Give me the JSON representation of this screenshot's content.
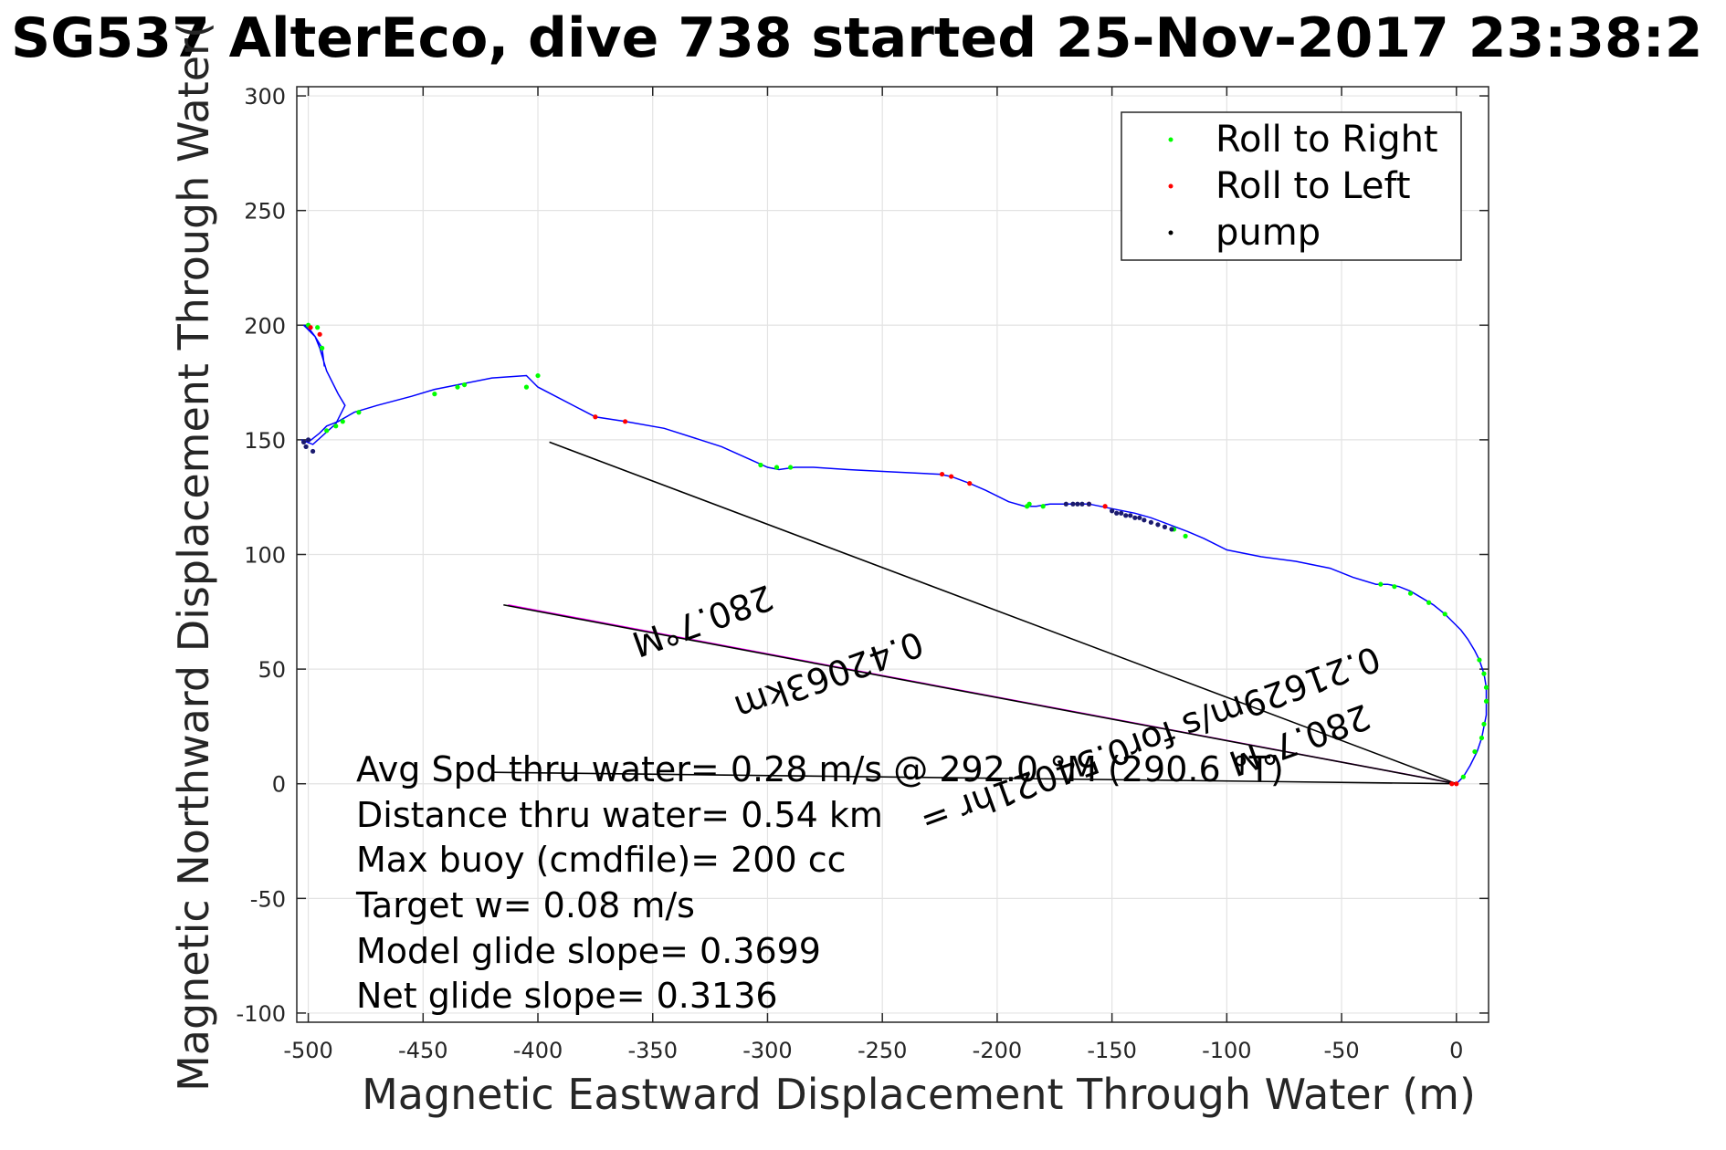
{
  "chart_data": {
    "type": "line",
    "title": "SG537 AlterEco, dive 738 started 25-Nov-2017 23:38:2",
    "xlabel": "Magnetic Eastward Displacement Through Water (m)",
    "ylabel": "Magnetic Northward Displacement Through Water(",
    "xlim": [
      -505,
      14
    ],
    "ylim": [
      -104,
      304
    ],
    "xticks": [
      -500,
      -450,
      -400,
      -350,
      -300,
      -250,
      -200,
      -150,
      -100,
      -50,
      0
    ],
    "yticks": [
      -100,
      -50,
      0,
      50,
      100,
      150,
      200,
      250,
      300
    ],
    "xtick_labels": [
      "-500",
      "-450",
      "-400",
      "-350",
      "-300",
      "-250",
      "-200",
      "-150",
      "-100",
      "-50",
      "0"
    ],
    "ytick_labels": [
      "-100",
      "-50",
      "0",
      "50",
      "100",
      "150",
      "200",
      "250",
      "300"
    ],
    "grid": true,
    "legend_placement": "top-right",
    "legend": [
      {
        "label": "Roll to Right",
        "color": "#00ff00"
      },
      {
        "label": "Roll to Left",
        "color": "#ff0000"
      },
      {
        "label": "pump",
        "color": "#000000"
      }
    ],
    "track": {
      "name": "",
      "color": "#0000ff",
      "x": [
        0,
        3,
        6,
        9,
        11,
        12,
        13,
        13,
        13,
        12,
        10,
        8,
        5,
        2,
        -2,
        -5,
        -10,
        -15,
        -20,
        -25,
        -30,
        -35,
        -45,
        -55,
        -70,
        -85,
        -100,
        -110,
        -117,
        -125,
        -133,
        -140,
        -150,
        -160,
        -170,
        -177,
        -183,
        -188,
        -195,
        -205,
        -212,
        -220,
        -225,
        -245,
        -265,
        -280,
        -288,
        -295,
        -300,
        -320,
        -345,
        -362,
        -375,
        -400,
        -405,
        -420,
        -435,
        -445,
        -455,
        -470,
        -480,
        -487,
        -492,
        -495,
        -500,
        -503,
        -498,
        -488,
        -484,
        -487,
        -492,
        -495,
        -497,
        -500,
        -502,
        -501,
        -497,
        -494,
        -493
      ],
      "y": [
        0,
        3,
        8,
        14,
        20,
        25,
        30,
        36,
        42,
        48,
        54,
        58,
        63,
        67,
        71,
        74,
        78,
        81,
        84,
        86,
        87,
        87,
        90,
        94,
        97,
        99,
        102,
        107,
        110,
        113,
        116,
        118,
        120,
        122,
        122,
        122,
        121,
        121,
        123,
        128,
        131,
        134,
        135,
        136,
        137,
        138,
        138,
        137,
        138,
        147,
        155,
        158,
        160,
        173,
        178,
        177,
        174,
        172,
        169,
        165,
        162,
        158,
        156,
        153,
        149,
        150,
        148,
        157,
        165,
        170,
        180,
        190,
        195,
        199,
        200,
        199,
        195,
        190,
        182
      ]
    },
    "roll_to_right": {
      "x": [
        3,
        8,
        11,
        12,
        13,
        13,
        12,
        10,
        -5,
        -12,
        -20,
        -27,
        -33,
        -118,
        -123,
        -180,
        -187,
        -186,
        -290,
        -296,
        -303,
        -405,
        -400,
        -432,
        -435,
        -445,
        -478,
        -485,
        -488,
        -492,
        -500,
        -496,
        -494
      ],
      "y": [
        3,
        14,
        20,
        26,
        36,
        42,
        48,
        54,
        74,
        79,
        83,
        86,
        87,
        108,
        111,
        121,
        121,
        122,
        138,
        138,
        139,
        173,
        178,
        174,
        173,
        170,
        162,
        158,
        156,
        154,
        200,
        199,
        190
      ]
    },
    "roll_to_left": {
      "x": [
        0,
        -2,
        -160,
        -153,
        -212,
        -220,
        -224,
        -362,
        -375,
        -499,
        -495
      ],
      "y": [
        0,
        0,
        122,
        121,
        131,
        134,
        135,
        158,
        160,
        199,
        196
      ]
    },
    "pump": {
      "x": [
        -170,
        -167,
        -165,
        -163,
        -160,
        -150,
        -148,
        -146,
        -144,
        -142,
        -140,
        -138,
        -136,
        -133,
        -130,
        -127,
        -124,
        -500,
        -502,
        -501,
        -498
      ],
      "y": [
        122,
        122,
        122,
        122,
        122,
        119,
        118,
        118,
        117,
        117,
        116,
        116,
        115,
        114,
        113,
        112,
        111,
        150,
        149,
        147,
        145
      ]
    },
    "lines": {
      "avg_heading": {
        "color": "#000000",
        "from": [
          0,
          0
        ],
        "to": [
          -395,
          149
        ]
      },
      "current_heading": {
        "color": "#ff00ff",
        "from": [
          0,
          0
        ],
        "to": [
          -413,
          78
        ]
      },
      "current_heading_2": {
        "color": "#000000",
        "from": [
          0,
          0
        ],
        "to": [
          -415,
          78
        ]
      },
      "drift": {
        "color": "#000000",
        "from": [
          0,
          0
        ],
        "to": [
          -420,
          5
        ]
      }
    },
    "annotations": [
      {
        "text": "280.7°M",
        "x": -330,
        "y": 76,
        "rotation": 160
      },
      {
        "text": "0.42063km",
        "x": -275,
        "y": 52,
        "rotation": 160
      },
      {
        "text": "280.7°M",
        "x": -70,
        "y": 24,
        "rotation": 160
      },
      {
        "text": "0.21629m/s for0.54021hr =",
        "x": -135,
        "y": 24,
        "rotation": 160
      }
    ],
    "stats": [
      "Avg Spd thru water=  0.28 m/s @ 292.0  °M (290.6 °T)",
      "Distance thru water=  0.54 km",
      "Max buoy (cmdfile)= 200 cc",
      "Target w= 0.08 m/s",
      "Model glide slope= 0.3699",
      "Net glide slope= 0.3136"
    ]
  }
}
